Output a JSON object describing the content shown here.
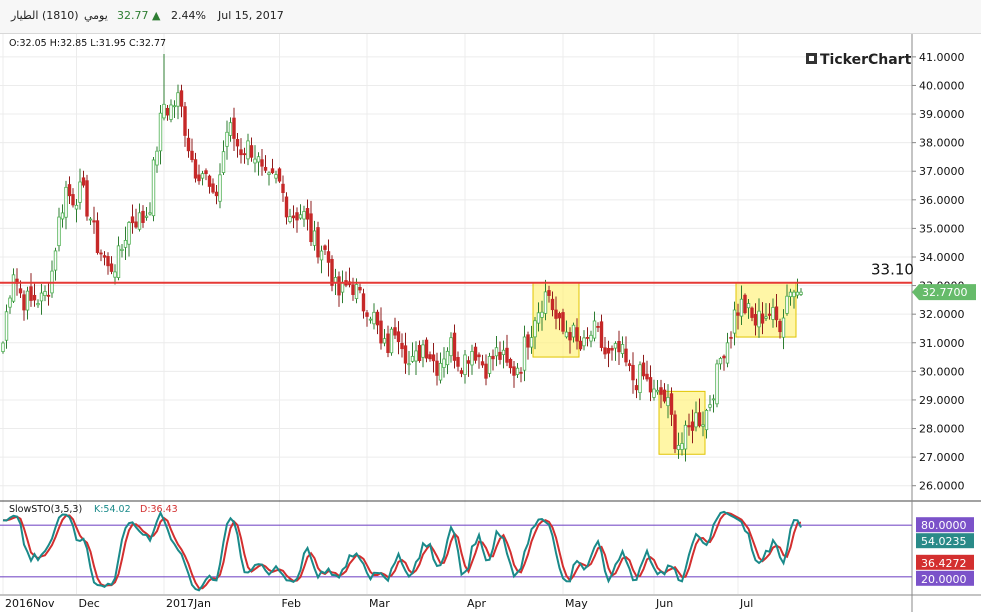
{
  "header": {
    "symbol_name": "الطيار",
    "symbol_code": "(1810)",
    "period": "يومي",
    "last_price": "32.77",
    "change_pct": "2.44%",
    "date": "Jul 15, 2017"
  },
  "ohlc_readout": "O:32.05  H:32.85  L:31.95  C:32.77",
  "brand": "TickerChart",
  "colors": {
    "up": "#4caf50",
    "down": "#c62828",
    "hline": "#e53935",
    "k_line": "#1a8a8a",
    "d_line": "#d32f2f",
    "band": "#7b52c9",
    "highlight": "#fff176",
    "price_badge": "#66bb6a"
  },
  "chart_data": [
    {
      "type": "candlestick",
      "y_tick_labels": [
        "41.0000",
        "40.0000",
        "39.0000",
        "38.0000",
        "37.0000",
        "36.0000",
        "35.0000",
        "34.0000",
        "33.0000",
        "32.0000",
        "31.0000",
        "30.0000",
        "29.0000",
        "28.0000",
        "27.0000",
        "26.0000"
      ],
      "ylim": [
        25.5,
        41.8
      ],
      "x_labels": [
        "2016Nov",
        "Dec",
        "2017Jan",
        "Feb",
        "Mar",
        "Apr",
        "May",
        "Jun",
        "Jul"
      ],
      "horizontal_line": {
        "value": 33.1,
        "label": "33.10"
      },
      "last_price_badge": "32.7700",
      "highlight_boxes": [
        {
          "from": 152,
          "to": 164,
          "ymin": 30.5,
          "ymax": 33.1
        },
        {
          "from": 188,
          "to": 200,
          "ymin": 27.1,
          "ymax": 29.3
        },
        {
          "from": 210,
          "to": 226,
          "ymin": 31.2,
          "ymax": 33.1
        }
      ],
      "month_starts": [
        0,
        21,
        46,
        79,
        104,
        132,
        160,
        186,
        210
      ],
      "anchors": [
        [
          0,
          31.0
        ],
        [
          3,
          33.5
        ],
        [
          8,
          32.2
        ],
        [
          11,
          32.6
        ],
        [
          14,
          33.5
        ],
        [
          18,
          36.5
        ],
        [
          21,
          36.2
        ],
        [
          25,
          35.5
        ],
        [
          30,
          33.3
        ],
        [
          35,
          34.8
        ],
        [
          42,
          35.9
        ],
        [
          46,
          39.5
        ],
        [
          50,
          39.3
        ],
        [
          55,
          37.3
        ],
        [
          60,
          36.0
        ],
        [
          64,
          38.2
        ],
        [
          69,
          38.0
        ],
        [
          74,
          37.0
        ],
        [
          79,
          36.3
        ],
        [
          84,
          35.5
        ],
        [
          90,
          34.6
        ],
        [
          95,
          33.0
        ],
        [
          100,
          32.8
        ],
        [
          104,
          32.5
        ],
        [
          108,
          30.8
        ],
        [
          112,
          31.5
        ],
        [
          116,
          30.4
        ],
        [
          120,
          30.7
        ],
        [
          124,
          30.5
        ],
        [
          128,
          30.7
        ],
        [
          132,
          30.6
        ],
        [
          136,
          30.5
        ],
        [
          140,
          30.4
        ],
        [
          144,
          30.3
        ],
        [
          148,
          30.1
        ],
        [
          152,
          32.3
        ],
        [
          156,
          32.5
        ],
        [
          160,
          31.5
        ],
        [
          164,
          30.9
        ],
        [
          168,
          31.2
        ],
        [
          172,
          30.8
        ],
        [
          176,
          30.4
        ],
        [
          180,
          30.0
        ],
        [
          184,
          29.4
        ],
        [
          188,
          29.3
        ],
        [
          192,
          27.7
        ],
        [
          196,
          27.8
        ],
        [
          200,
          28.6
        ],
        [
          204,
          29.6
        ],
        [
          206,
          30.9
        ],
        [
          209,
          32.1
        ],
        [
          214,
          32.0
        ],
        [
          218,
          31.8
        ],
        [
          222,
          32.0
        ],
        [
          225,
          32.77
        ]
      ],
      "series": [
        {
          "name": "K",
          "legend": "K:54.02",
          "value_badge": "54.0235"
        },
        {
          "name": "D",
          "legend": "D:36.43",
          "value_badge": "36.4272"
        }
      ],
      "oscillator": {
        "label": "SlowSTO(3,5,3)",
        "levels": [
          {
            "value": 80,
            "badge": "80.0000"
          },
          {
            "value": 20,
            "badge": "20.0000"
          }
        ],
        "ylim": [
          0,
          100
        ]
      }
    }
  ]
}
